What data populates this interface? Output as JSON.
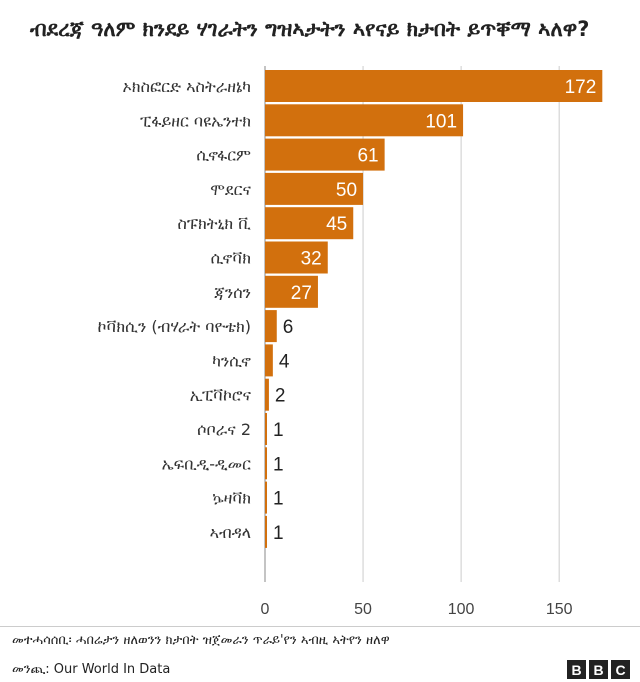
{
  "chart_data": {
    "type": "bar",
    "orientation": "horizontal",
    "title": "ብደረጃ ዓለም ክንደይ ሃገራትን ግዝኣታትን  ኣየናይ ክታበት ይጥቐማ ኣለዋ?",
    "categories": [
      "ኦክስፎርድ ኣስትራዘኔካ",
      "ፒፋይዘር ባዩኤንተክ",
      "ሲኖፋርም",
      "ሞደርና",
      "ስፑክትኒክ ቪ",
      "ሲኖቫክ",
      "ጃንሰን",
      "ኮቫክሲን (ብሃራት ባዮቴክ)",
      "ካንሲኖ",
      "ኢፒቫኮሮና",
      "ሶቦራና 2",
      "ኤፍቢዲ-ዲመር",
      "ኴዛቫክ",
      "ኣብዳላ"
    ],
    "values": [
      172,
      101,
      61,
      50,
      45,
      32,
      27,
      6,
      4,
      2,
      1,
      1,
      1,
      1
    ],
    "xlim": [
      0,
      180
    ],
    "x_ticks": [
      "0",
      "50",
      "100",
      "150"
    ],
    "x_tick_values": [
      0,
      50,
      100,
      150
    ],
    "grid": "vertical",
    "bar_color": "#d2700d",
    "label_color_inside": "#ffffff",
    "label_color_outside": "#222222",
    "grid_color": "#cccccc"
  },
  "footer": {
    "note": "መተሓሳሰቢ፡ ሓበሬታን ዘለወንን ክታበት ዝጀመራን ጥራይ'የን ኣብዚ ኣትየን ዘለዋ",
    "source": "መንጪ: Our World In Data",
    "brand_letters": [
      "B",
      "B",
      "C"
    ]
  }
}
